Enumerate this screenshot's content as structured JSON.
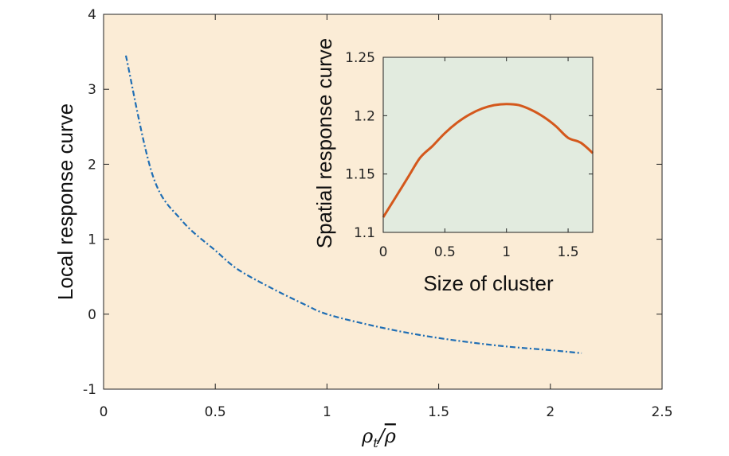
{
  "chart_data": [
    {
      "type": "line",
      "title": "",
      "xlabel": "ρ_t/ρ̄",
      "ylabel": "Local response curve",
      "xlim": [
        0,
        2.5
      ],
      "ylim": [
        -1,
        4
      ],
      "xticks": [
        0,
        0.5,
        1,
        1.5,
        2,
        2.5
      ],
      "xtick_labels": [
        "0",
        "0.5",
        "1",
        "1.5",
        "2",
        "2.5"
      ],
      "yticks": [
        -1,
        0,
        1,
        2,
        3,
        4
      ],
      "ytick_labels": [
        "-1",
        "0",
        "1",
        "2",
        "3",
        "4"
      ],
      "background": "#fbecd6",
      "series": [
        {
          "name": "local-response",
          "color": "#1f6eb4",
          "style": "dashdot",
          "x": [
            0.1,
            0.22,
            0.35,
            0.5,
            0.6,
            0.75,
            0.9,
            1.0,
            1.2,
            1.4,
            1.6,
            1.8,
            2.0,
            2.14
          ],
          "y": [
            3.45,
            1.85,
            1.25,
            0.85,
            0.6,
            0.35,
            0.13,
            0.0,
            -0.15,
            -0.27,
            -0.36,
            -0.43,
            -0.48,
            -0.52
          ]
        }
      ]
    },
    {
      "type": "line",
      "title": "",
      "xlabel": "Size of cluster",
      "ylabel": "Spatial response curve",
      "xlim": [
        0,
        1.7
      ],
      "ylim": [
        1.1,
        1.25
      ],
      "xticks": [
        0,
        0.5,
        1,
        1.5
      ],
      "xtick_labels": [
        "0",
        "0.5",
        "1",
        "1.5"
      ],
      "yticks": [
        1.1,
        1.15,
        1.2,
        1.25
      ],
      "ytick_labels": [
        "1.1",
        "1.15",
        "1.2",
        "1.25"
      ],
      "background": "#e2ebdf",
      "series": [
        {
          "name": "spatial-response",
          "color": "#d4581c",
          "style": "solid",
          "x": [
            0.0,
            0.1,
            0.2,
            0.3,
            0.4,
            0.5,
            0.6,
            0.7,
            0.8,
            0.9,
            1.0,
            1.1,
            1.2,
            1.3,
            1.4,
            1.5,
            1.6,
            1.7
          ],
          "y": [
            1.113,
            1.13,
            1.147,
            1.164,
            1.174,
            1.185,
            1.194,
            1.201,
            1.206,
            1.209,
            1.21,
            1.209,
            1.205,
            1.199,
            1.191,
            1.181,
            1.177,
            1.168
          ]
        }
      ]
    }
  ]
}
